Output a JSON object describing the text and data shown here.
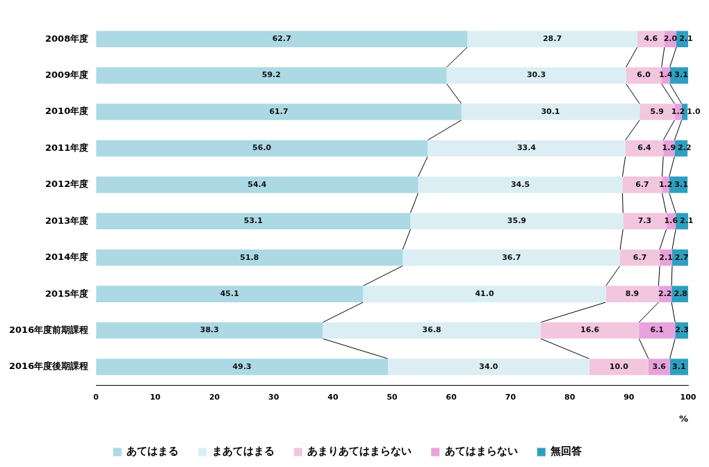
{
  "chart_data": {
    "type": "bar",
    "orientation": "horizontal",
    "stacked": true,
    "xlabel": "%",
    "categories": [
      "2008年度",
      "2009年度",
      "2010年度",
      "2011年度",
      "2012年度",
      "2013年度",
      "2014年度",
      "2015年度",
      "2016年度前期課程",
      "2016年度後期課程"
    ],
    "series": [
      {
        "name": "あてはまる",
        "color": "#acd9e3",
        "values": [
          62.7,
          59.2,
          61.7,
          56.0,
          54.4,
          53.1,
          51.8,
          45.1,
          38.3,
          49.3
        ],
        "value_labels": [
          "62.7",
          "59.2",
          "61.7",
          "56.0",
          "54.4",
          "53.1",
          "51.8",
          "45.1",
          "38.3",
          "49.3"
        ]
      },
      {
        "name": "まあてはまる",
        "color": "#dbeef4",
        "values": [
          28.7,
          30.3,
          30.1,
          33.4,
          34.5,
          35.9,
          36.7,
          41.0,
          36.8,
          34.0
        ],
        "value_labels": [
          "28.7",
          "30.3",
          "30.1",
          "33.4",
          "34.5",
          "35.9",
          "36.7",
          "41.0",
          "36.8",
          "34.0"
        ]
      },
      {
        "name": "あまりあてはまらない",
        "color": "#f2c6df",
        "values": [
          4.6,
          6.0,
          5.9,
          6.4,
          6.7,
          7.3,
          6.7,
          8.9,
          16.6,
          10.0
        ],
        "value_labels": [
          "4.6",
          "6.0",
          "5.9",
          "6.4",
          "6.7",
          "7.3",
          "6.7",
          "8.9",
          "16.6",
          "10.0"
        ]
      },
      {
        "name": "あてはまらない",
        "color": "#e8a2db",
        "values": [
          2.0,
          1.4,
          1.2,
          1.9,
          1.2,
          1.6,
          2.1,
          2.2,
          6.1,
          3.6
        ],
        "value_labels": [
          "2.0",
          "1.4",
          "1.2",
          "1.9",
          "1.2",
          "1.6",
          "2.1",
          "2.2",
          "6.1",
          "3.6"
        ]
      },
      {
        "name": "無回答",
        "color": "#2f9fc0",
        "values": [
          2.1,
          3.1,
          1.0,
          2.2,
          3.1,
          2.1,
          2.7,
          2.8,
          2.3,
          3.1
        ],
        "value_labels": [
          "2.1",
          "3.1",
          "1.0",
          "2.2",
          "3.1",
          "2.1",
          "2.7",
          "2.8",
          "2.3",
          "3.1"
        ]
      }
    ],
    "xlim": [
      0,
      100
    ],
    "xticks": [
      0,
      10,
      20,
      30,
      40,
      50,
      60,
      70,
      80,
      90,
      100
    ],
    "grid": false,
    "legend": "bottom"
  }
}
